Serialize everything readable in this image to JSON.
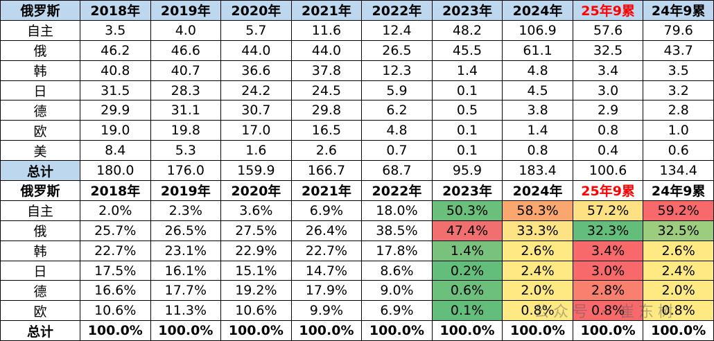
{
  "top": {
    "header": [
      "俄罗斯",
      "2018年",
      "2019年",
      "2020年",
      "2021年",
      "2022年",
      "2023年",
      "2024年",
      "25年9累",
      "24年9累"
    ],
    "rows": [
      [
        "自主",
        "3.5",
        "4.0",
        "5.7",
        "11.6",
        "12.4",
        "48.2",
        "106.9",
        "57.6",
        "79.6"
      ],
      [
        "俄",
        "46.2",
        "46.6",
        "44.0",
        "44.0",
        "26.5",
        "45.5",
        "61.1",
        "32.5",
        "43.7"
      ],
      [
        "韩",
        "40.8",
        "40.7",
        "36.6",
        "37.8",
        "12.3",
        "1.4",
        "4.8",
        "3.4",
        "3.5"
      ],
      [
        "日",
        "31.5",
        "28.3",
        "24.2",
        "24.5",
        "5.9",
        "0.1",
        "4.5",
        "3.0",
        "3.2"
      ],
      [
        "德",
        "29.9",
        "31.1",
        "30.7",
        "29.8",
        "6.2",
        "0.5",
        "3.8",
        "2.9",
        "2.8"
      ],
      [
        "欧",
        "19.0",
        "19.8",
        "17.0",
        "16.5",
        "4.8",
        "0.1",
        "1.4",
        "0.8",
        "1.0"
      ],
      [
        "美",
        "8.4",
        "5.3",
        "1.6",
        "2.6",
        "0.7",
        "0.1",
        "0.8",
        "0.4",
        "0.6"
      ]
    ],
    "total": [
      "总计",
      "180.0",
      "176.0",
      "159.9",
      "166.7",
      "68.7",
      "95.9",
      "183.4",
      "100.6",
      "134.4"
    ]
  },
  "bottom": {
    "header": [
      "俄罗斯",
      "2018年",
      "2019年",
      "2020年",
      "2021年",
      "2022年",
      "2023年",
      "2024年",
      "25年9累",
      "24年9累"
    ],
    "rows": [
      [
        "自主",
        "2.0%",
        "2.3%",
        "3.6%",
        "6.9%",
        "18.0%",
        "50.3%",
        "58.3%",
        "57.2%",
        "59.2%"
      ],
      [
        "俄",
        "25.7%",
        "26.5%",
        "27.5%",
        "26.4%",
        "38.5%",
        "47.4%",
        "33.3%",
        "32.3%",
        "32.5%"
      ],
      [
        "韩",
        "22.7%",
        "23.1%",
        "22.9%",
        "22.7%",
        "17.8%",
        "1.4%",
        "2.6%",
        "3.4%",
        "2.6%"
      ],
      [
        "日",
        "17.5%",
        "16.1%",
        "15.1%",
        "14.7%",
        "8.6%",
        "0.2%",
        "2.4%",
        "3.0%",
        "2.4%"
      ],
      [
        "德",
        "16.6%",
        "17.7%",
        "19.2%",
        "17.9%",
        "9.0%",
        "0.6%",
        "2.0%",
        "2.8%",
        "2.0%"
      ],
      [
        "欧",
        "10.6%",
        "11.3%",
        "10.6%",
        "9.9%",
        "6.9%",
        "0.1%",
        "0.8%",
        "0.8%",
        "0.8%"
      ]
    ],
    "total": [
      "总计",
      "100.0%",
      "100.0%",
      "100.0%",
      "100.0%",
      "100.0%",
      "100.0%",
      "100.0%",
      "100.0%",
      "100.0%"
    ],
    "heat_colors": [
      [
        "#6abf7b",
        "#f9a76f",
        "#fee182",
        "#f8696b"
      ],
      [
        "#f1706f",
        "#fde383",
        "#63be7b",
        "#9ccd7f"
      ],
      [
        "#78c27e",
        "#fee983",
        "#f8696b",
        "#fee983"
      ],
      [
        "#63be7b",
        "#fee983",
        "#f8696b",
        "#fee983"
      ],
      [
        "#6cc07c",
        "#fee983",
        "#f97f6f",
        "#fee983"
      ],
      [
        "#63be7b",
        "#fee983",
        "#f8696b",
        "#fee983"
      ]
    ]
  },
  "watermark": "公众号 · 崔东树"
}
